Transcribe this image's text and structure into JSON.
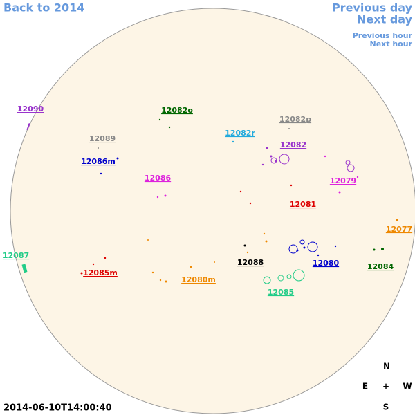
{
  "nav": {
    "back": "Back to 2014",
    "previous_day": "Previous day",
    "next_day": "Next day",
    "previous_hour": "Previous hour",
    "next_hour": "Next hour"
  },
  "regions": [
    "12090",
    "12082o",
    "12082p",
    "12089",
    "12082r",
    "12082",
    "12086m",
    "12086",
    "12079",
    "12081",
    "12077",
    "12087",
    "12088",
    "12080",
    "12084",
    "12085m",
    "12080m",
    "12085"
  ],
  "compass": {
    "north": "N",
    "east": "E",
    "center": "+",
    "west": "W",
    "south": "S"
  },
  "timestamp": "2014-06-10T14:00:40"
}
